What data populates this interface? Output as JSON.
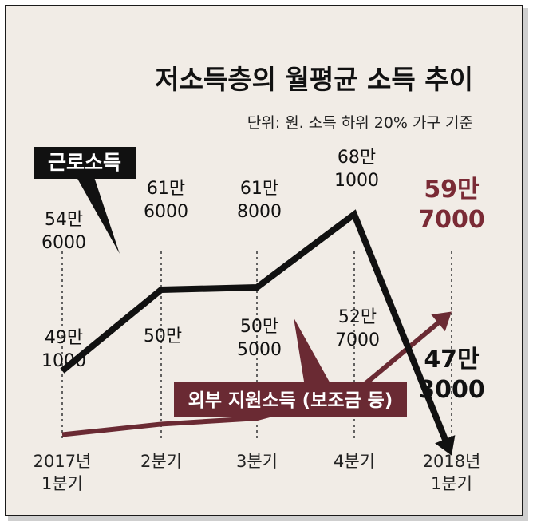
{
  "title": "저소득층의 월평균 소득 추이",
  "subtitle": "단위: 원. 소득 하위 20% 가구 기준",
  "colors": {
    "background": "#f1ece6",
    "work_income": "#111111",
    "support_income": "#6a2a33",
    "support_label_text": "#7a2a35"
  },
  "chart_data": {
    "type": "line",
    "categories": [
      "2017년 1분기",
      "2분기",
      "3분기",
      "4분기",
      "2018년 1분기"
    ],
    "category_lines": [
      [
        "2017년",
        "1분기"
      ],
      [
        "2분기"
      ],
      [
        "3분기"
      ],
      [
        "4분기"
      ],
      [
        "2018년",
        "1분기"
      ]
    ],
    "series": [
      {
        "name": "근로소득",
        "values": [
          546000,
          616000,
          618000,
          681000,
          473000
        ],
        "labels": [
          [
            "54만",
            "6000"
          ],
          [
            "61만",
            "6000"
          ],
          [
            "61만",
            "8000"
          ],
          [
            "68만",
            "1000"
          ],
          [
            "47만",
            "3000"
          ]
        ]
      },
      {
        "name": "외부 지원소득 (보조금 등)",
        "values": [
          491000,
          500000,
          505000,
          527000,
          597000
        ],
        "labels": [
          [
            "49만",
            "1000"
          ],
          [
            "50만"
          ],
          [
            "50만",
            "5000"
          ],
          [
            "52만",
            "7000"
          ],
          [
            "59만",
            "7000"
          ]
        ]
      }
    ]
  }
}
